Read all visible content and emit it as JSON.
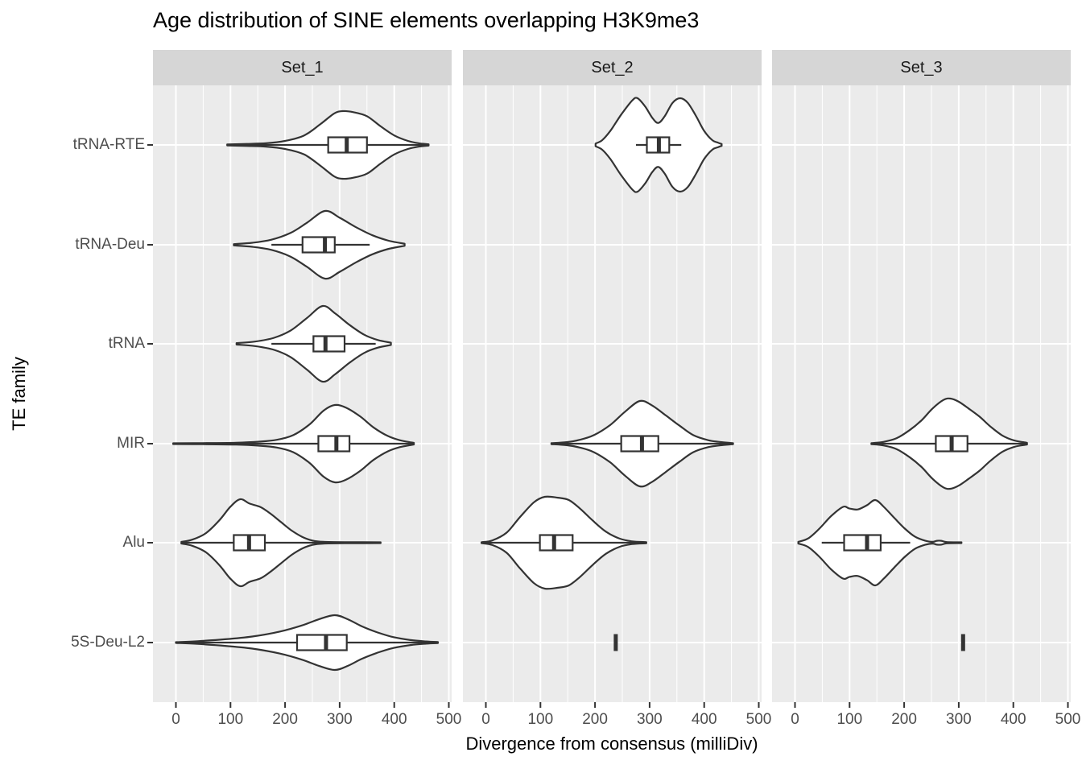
{
  "title": "Age distribution of SINE elements overlapping H3K9me3",
  "axes": {
    "x_title": "Divergence from consensus (milliDiv)",
    "y_title": "TE family",
    "x_ticks": [
      0,
      100,
      200,
      300,
      400,
      500
    ],
    "x_minor_ticks": [
      50,
      150,
      250,
      350,
      450
    ],
    "y_categories": [
      "tRNA-RTE",
      "tRNA-Deu",
      "tRNA",
      "MIR",
      "Alu",
      "5S-Deu-L2"
    ]
  },
  "colors": {
    "background": "#FFFFFF",
    "panel": "#EBEBEB",
    "strip": "#D6D6D6",
    "grid": "#FFFFFF",
    "outline": "#333333",
    "violin_fill": "#FFFFFF",
    "tick_text": "#4D4D4D",
    "title_text": "#000000"
  },
  "chart_data": {
    "type": "violin",
    "title": "Age distribution of SINE elements overlapping H3K9me3",
    "xlabel": "Divergence from consensus (milliDiv)",
    "ylabel": "TE family",
    "x_range_shown": [
      0,
      500
    ],
    "grid": "on",
    "facets": [
      {
        "label": "Set_1",
        "violins": [
          {
            "family": "tRNA-RTE",
            "hw": 42,
            "box": {
              "q1": 279,
              "median": 313,
              "q3": 350,
              "whisker_lo": 94,
              "whisker_hi": 463
            },
            "density": [
              [
                94,
                0.015
              ],
              [
                130,
                0.03
              ],
              [
                165,
                0.05
              ],
              [
                200,
                0.12
              ],
              [
                235,
                0.28
              ],
              [
                265,
                0.62
              ],
              [
                290,
                0.93
              ],
              [
                305,
                1.0
              ],
              [
                325,
                0.97
              ],
              [
                350,
                0.85
              ],
              [
                375,
                0.55
              ],
              [
                400,
                0.28
              ],
              [
                425,
                0.12
              ],
              [
                445,
                0.05
              ],
              [
                463,
                0.02
              ]
            ]
          },
          {
            "family": "tRNA-Deu",
            "hw": 42,
            "box": {
              "q1": 232,
              "median": 273,
              "q3": 291,
              "whisker_lo": 175,
              "whisker_hi": 355
            },
            "density": [
              [
                106,
                0.02
              ],
              [
                140,
                0.06
              ],
              [
                175,
                0.15
              ],
              [
                210,
                0.35
              ],
              [
                240,
                0.65
              ],
              [
                273,
                1.0
              ],
              [
                300,
                0.8
              ],
              [
                330,
                0.52
              ],
              [
                360,
                0.28
              ],
              [
                390,
                0.12
              ],
              [
                419,
                0.03
              ]
            ]
          },
          {
            "family": "tRNA",
            "hw": 47,
            "box": {
              "q1": 252,
              "median": 274,
              "q3": 309,
              "whisker_lo": 175,
              "whisker_hi": 366
            },
            "density": [
              [
                111,
                0.02
              ],
              [
                145,
                0.06
              ],
              [
                180,
                0.16
              ],
              [
                210,
                0.35
              ],
              [
                240,
                0.68
              ],
              [
                269,
                1.0
              ],
              [
                292,
                0.8
              ],
              [
                318,
                0.5
              ],
              [
                345,
                0.24
              ],
              [
                370,
                0.1
              ],
              [
                394,
                0.03
              ]
            ]
          },
          {
            "family": "MIR",
            "hw": 48,
            "box": {
              "q1": 261,
              "median": 294,
              "q3": 318,
              "whisker_lo": -5,
              "whisker_hi": 436
            },
            "density": [
              [
                -5,
                0.01
              ],
              [
                50,
                0.015
              ],
              [
                110,
                0.025
              ],
              [
                150,
                0.05
              ],
              [
                185,
                0.1
              ],
              [
                215,
                0.22
              ],
              [
                245,
                0.5
              ],
              [
                270,
                0.85
              ],
              [
                291,
                1.0
              ],
              [
                312,
                0.93
              ],
              [
                338,
                0.7
              ],
              [
                362,
                0.42
              ],
              [
                388,
                0.2
              ],
              [
                410,
                0.09
              ],
              [
                436,
                0.02
              ]
            ]
          },
          {
            "family": "Alu",
            "hw": 54,
            "box": {
              "q1": 106,
              "median": 134,
              "q3": 163,
              "whisker_lo": 10,
              "whisker_hi": 375
            },
            "density": [
              [
                10,
                0.02
              ],
              [
                30,
                0.07
              ],
              [
                55,
                0.22
              ],
              [
                80,
                0.52
              ],
              [
                100,
                0.83
              ],
              [
                118,
                1.0
              ],
              [
                135,
                0.9
              ],
              [
                155,
                0.82
              ],
              [
                172,
                0.68
              ],
              [
                192,
                0.48
              ],
              [
                212,
                0.28
              ],
              [
                232,
                0.13
              ],
              [
                250,
                0.05
              ],
              [
                270,
                0.02
              ],
              [
                320,
                0.012
              ],
              [
                375,
                0.01
              ]
            ]
          },
          {
            "family": "5S-Deu-L2",
            "hw": 34,
            "box": {
              "q1": 222,
              "median": 275,
              "q3": 313,
              "whisker_lo": 0,
              "whisker_hi": 480
            },
            "density": [
              [
                0,
                0.015
              ],
              [
                40,
                0.05
              ],
              [
                90,
                0.12
              ],
              [
                140,
                0.22
              ],
              [
                190,
                0.4
              ],
              [
                230,
                0.62
              ],
              [
                262,
                0.85
              ],
              [
                291,
                1.0
              ],
              [
                315,
                0.85
              ],
              [
                340,
                0.6
              ],
              [
                368,
                0.38
              ],
              [
                398,
                0.2
              ],
              [
                430,
                0.09
              ],
              [
                458,
                0.04
              ],
              [
                480,
                0.02
              ]
            ]
          }
        ]
      },
      {
        "label": "Set_2",
        "violins": [
          {
            "family": "tRNA-RTE",
            "hw": 58,
            "box": {
              "q1": 295,
              "median": 317,
              "q3": 336,
              "whisker_lo": 275,
              "whisker_hi": 358
            },
            "density": [
              [
                201,
                0.03
              ],
              [
                213,
                0.1
              ],
              [
                228,
                0.3
              ],
              [
                248,
                0.65
              ],
              [
                268,
                0.95
              ],
              [
                278,
                1.0
              ],
              [
                292,
                0.82
              ],
              [
                305,
                0.58
              ],
              [
                316,
                0.47
              ],
              [
                328,
                0.62
              ],
              [
                342,
                0.9
              ],
              [
                356,
                1.0
              ],
              [
                370,
                0.9
              ],
              [
                385,
                0.62
              ],
              [
                400,
                0.3
              ],
              [
                415,
                0.1
              ],
              [
                425,
                0.05
              ],
              [
                432,
                0.02
              ]
            ]
          },
          {
            "family": "MIR",
            "hw": 53,
            "box": {
              "q1": 248,
              "median": 286,
              "q3": 316,
              "whisker_lo": 120,
              "whisker_hi": 453
            },
            "density": [
              [
                120,
                0.012
              ],
              [
                148,
                0.035
              ],
              [
                172,
                0.09
              ],
              [
                198,
                0.2
              ],
              [
                228,
                0.44
              ],
              [
                255,
                0.75
              ],
              [
                282,
                1.0
              ],
              [
                304,
                0.9
              ],
              [
                330,
                0.66
              ],
              [
                355,
                0.42
              ],
              [
                380,
                0.2
              ],
              [
                408,
                0.08
              ],
              [
                432,
                0.035
              ],
              [
                453,
                0.012
              ]
            ]
          },
          {
            "family": "Alu",
            "hw": 57,
            "box": {
              "q1": 99,
              "median": 125,
              "q3": 159,
              "whisker_lo": -8,
              "whisker_hi": 294
            },
            "density": [
              [
                -8,
                0.01
              ],
              [
                12,
                0.05
              ],
              [
                38,
                0.22
              ],
              [
                62,
                0.55
              ],
              [
                88,
                0.88
              ],
              [
                108,
                1.0
              ],
              [
                132,
                0.98
              ],
              [
                152,
                0.93
              ],
              [
                172,
                0.75
              ],
              [
                196,
                0.48
              ],
              [
                220,
                0.24
              ],
              [
                245,
                0.09
              ],
              [
                268,
                0.03
              ],
              [
                294,
                0.012
              ]
            ]
          },
          {
            "family": "5S-Deu-L2",
            "single_value": 238
          }
        ]
      },
      {
        "label": "Set_3",
        "violins": [
          {
            "family": "MIR",
            "hw": 56,
            "box": {
              "q1": 258,
              "median": 287,
              "q3": 316,
              "whisker_lo": 140,
              "whisker_hi": 425
            },
            "density": [
              [
                140,
                0.012
              ],
              [
                162,
                0.04
              ],
              [
                186,
                0.12
              ],
              [
                210,
                0.3
              ],
              [
                232,
                0.52
              ],
              [
                252,
                0.78
              ],
              [
                272,
                0.97
              ],
              [
                285,
                1.0
              ],
              [
                300,
                0.93
              ],
              [
                318,
                0.78
              ],
              [
                338,
                0.6
              ],
              [
                358,
                0.38
              ],
              [
                380,
                0.18
              ],
              [
                402,
                0.07
              ],
              [
                425,
                0.02
              ]
            ]
          },
          {
            "family": "Alu",
            "hw": 53,
            "box": {
              "q1": 90,
              "median": 132,
              "q3": 157,
              "whisker_lo": 49,
              "whisker_hi": 211
            },
            "density": [
              [
                6,
                0.02
              ],
              [
                24,
                0.1
              ],
              [
                44,
                0.32
              ],
              [
                66,
                0.62
              ],
              [
                88,
                0.84
              ],
              [
                100,
                0.8
              ],
              [
                115,
                0.78
              ],
              [
                132,
                0.88
              ],
              [
                147,
                1.0
              ],
              [
                162,
                0.85
              ],
              [
                182,
                0.58
              ],
              [
                202,
                0.32
              ],
              [
                220,
                0.14
              ],
              [
                238,
                0.05
              ],
              [
                252,
                0.02
              ],
              [
                260,
                0.045
              ],
              [
                268,
                0.045
              ],
              [
                278,
                0.015
              ],
              [
                305,
                0.01
              ]
            ]
          },
          {
            "family": "5S-Deu-L2",
            "single_value": 308
          }
        ]
      }
    ]
  }
}
